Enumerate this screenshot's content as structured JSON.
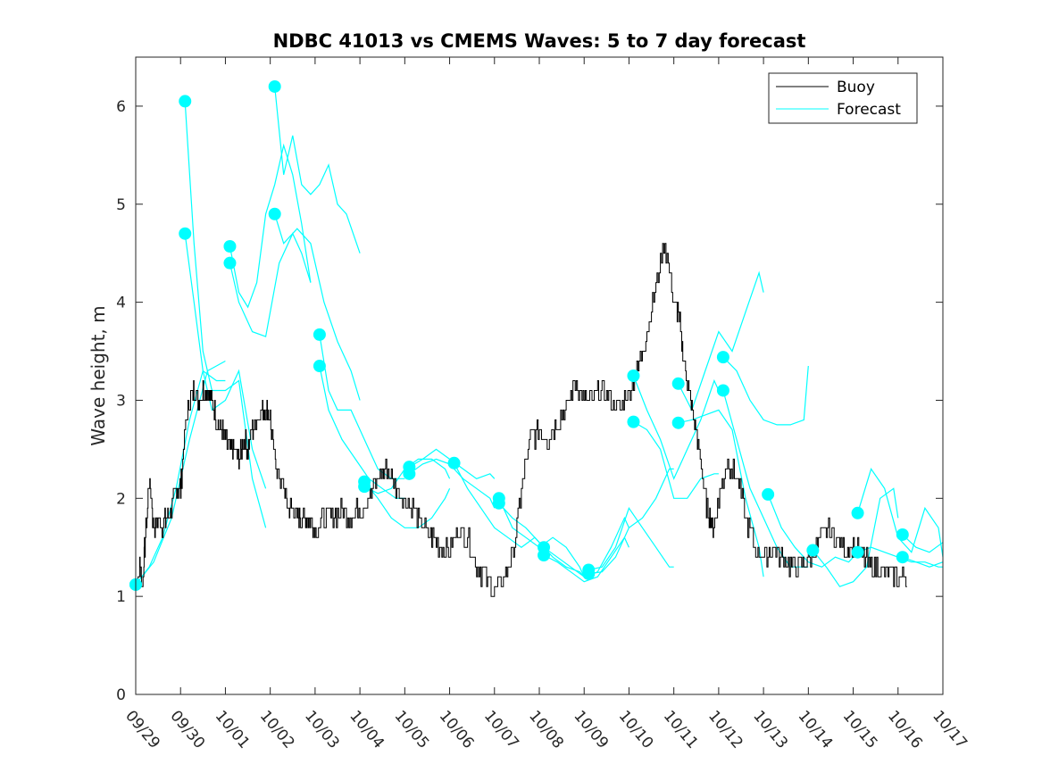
{
  "chart_data": {
    "type": "line",
    "title": "NDBC 41013 vs CMEMS Waves: 5 to 7 day forecast",
    "xlabel": "",
    "ylabel": "Wave height, m",
    "xlim": [
      0,
      18
    ],
    "ylim": [
      0,
      6.5
    ],
    "grid": false,
    "xticks": [
      0,
      1,
      2,
      3,
      4,
      5,
      6,
      7,
      8,
      9,
      10,
      11,
      12,
      13,
      14,
      15,
      16,
      17,
      18
    ],
    "xtick_labels": [
      "09/29",
      "09/30",
      "10/01",
      "10/02",
      "10/03",
      "10/04",
      "10/05",
      "10/06",
      "10/07",
      "10/08",
      "10/09",
      "10/10",
      "10/11",
      "10/12",
      "10/13",
      "10/14",
      "10/15",
      "10/16",
      "10/17"
    ],
    "yticks": [
      0,
      1,
      2,
      3,
      4,
      5,
      6
    ],
    "ytick_labels": [
      "0",
      "1",
      "2",
      "3",
      "4",
      "5",
      "6"
    ],
    "legend": {
      "location": "top-right",
      "entries": [
        {
          "label": "Buoy",
          "color": "#000000"
        },
        {
          "label": "Forecast",
          "color": "#00ffff"
        }
      ]
    },
    "colors": {
      "buoy": "#000000",
      "forecast": "#00ffff",
      "marker": "#00ffff"
    },
    "buoy": {
      "x": [
        0,
        0.1,
        0.15,
        0.2,
        0.3,
        0.4,
        0.5,
        0.6,
        0.7,
        0.8,
        0.9,
        1.0,
        1.1,
        1.2,
        1.3,
        1.4,
        1.5,
        1.6,
        1.7,
        1.8,
        1.9,
        2.0,
        2.1,
        2.2,
        2.3,
        2.4,
        2.5,
        2.6,
        2.7,
        2.8,
        2.9,
        3.0,
        3.1,
        3.2,
        3.3,
        3.4,
        3.5,
        3.6,
        3.7,
        3.8,
        3.9,
        4.0,
        4.2,
        4.4,
        4.6,
        4.8,
        5.0,
        5.2,
        5.4,
        5.6,
        5.8,
        6.0,
        6.2,
        6.4,
        6.6,
        6.8,
        7.0,
        7.2,
        7.4,
        7.6,
        7.8,
        8.0,
        8.2,
        8.4,
        8.6,
        8.8,
        9.0,
        9.2,
        9.4,
        9.6,
        9.8,
        10.0,
        10.2,
        10.4,
        10.6,
        10.8,
        11.0,
        11.2,
        11.4,
        11.6,
        11.8,
        12.0,
        12.1,
        12.2,
        12.3,
        12.4,
        12.5,
        12.6,
        12.7,
        12.8,
        12.9,
        13.0,
        13.2,
        13.4,
        13.6,
        13.8,
        14.0,
        14.2,
        14.4,
        14.6,
        14.8,
        15.0,
        15.2,
        15.4,
        15.6,
        15.8,
        16.0,
        16.2,
        16.4,
        16.6,
        16.8,
        17.0,
        17.2
      ],
      "y": [
        1.1,
        1.3,
        1.1,
        1.5,
        2.2,
        1.7,
        1.8,
        1.7,
        1.8,
        1.9,
        2.1,
        2.1,
        2.7,
        3.0,
        3.1,
        3.0,
        3.1,
        3.1,
        3.0,
        2.8,
        2.7,
        2.6,
        2.5,
        2.5,
        2.4,
        2.6,
        2.5,
        2.7,
        2.8,
        2.9,
        2.9,
        2.8,
        2.4,
        2.2,
        2.1,
        1.9,
        1.9,
        1.8,
        1.8,
        1.8,
        1.8,
        1.7,
        1.8,
        1.8,
        1.9,
        1.8,
        1.9,
        2.0,
        2.2,
        2.3,
        2.1,
        2.0,
        1.9,
        1.7,
        1.6,
        1.5,
        1.5,
        1.7,
        1.6,
        1.3,
        1.2,
        1.05,
        1.2,
        1.4,
        2.1,
        2.6,
        2.7,
        2.6,
        2.8,
        2.9,
        3.2,
        3.0,
        3.0,
        3.1,
        3.0,
        2.9,
        3.1,
        3.3,
        3.7,
        4.2,
        4.6,
        4.0,
        3.9,
        3.5,
        3.2,
        2.9,
        2.7,
        2.4,
        2.0,
        1.8,
        1.7,
        2.0,
        2.4,
        2.2,
        1.8,
        1.5,
        1.4,
        1.5,
        1.4,
        1.3,
        1.3,
        1.4,
        1.5,
        1.7,
        1.6,
        1.5,
        1.5,
        1.4,
        1.3,
        1.3,
        1.2,
        1.2,
        1.2
      ]
    },
    "forecasts": [
      {
        "x": [
          0,
          0.3,
          0.6,
          0.9,
          1.2,
          1.5,
          1.8,
          2.0
        ],
        "y": [
          1.12,
          1.3,
          1.6,
          2.1,
          2.8,
          3.3,
          3.2,
          3.2
        ]
      },
      {
        "x": [
          0,
          0.4,
          0.8,
          1.2,
          1.6,
          2.0
        ],
        "y": [
          1.12,
          1.35,
          1.8,
          2.6,
          3.3,
          3.4
        ]
      },
      {
        "x": [
          1.1,
          1.3,
          1.5,
          1.7,
          2.0,
          2.3,
          2.6,
          2.9
        ],
        "y": [
          6.05,
          4.6,
          3.5,
          3.1,
          3.1,
          3.2,
          2.2,
          1.7
        ]
      },
      {
        "x": [
          1.1,
          1.3,
          1.5,
          1.7,
          2.0,
          2.3,
          2.6,
          2.9
        ],
        "y": [
          4.7,
          4.0,
          3.3,
          2.9,
          3.0,
          3.3,
          2.5,
          2.1
        ]
      },
      {
        "x": [
          2.1,
          2.3,
          2.5,
          2.7,
          2.9,
          3.1,
          3.3,
          3.5,
          3.7,
          3.9
        ],
        "y": [
          4.57,
          4.1,
          3.95,
          4.2,
          4.9,
          5.2,
          5.6,
          5.3,
          4.8,
          4.2
        ]
      },
      {
        "x": [
          2.1,
          2.3,
          2.6,
          2.9,
          3.2,
          3.5,
          3.7,
          3.9
        ],
        "y": [
          4.4,
          4.0,
          3.7,
          3.65,
          4.4,
          4.7,
          4.5,
          4.2
        ]
      },
      {
        "x": [
          3.1,
          3.3,
          3.5,
          3.7,
          3.9,
          4.1,
          4.3,
          4.5,
          4.7,
          5.0
        ],
        "y": [
          6.2,
          5.3,
          5.7,
          5.2,
          5.1,
          5.2,
          5.4,
          5.0,
          4.9,
          4.5
        ]
      },
      {
        "x": [
          3.1,
          3.3,
          3.6,
          3.9,
          4.2,
          4.5,
          4.8,
          5.0
        ],
        "y": [
          4.9,
          4.6,
          4.75,
          4.6,
          4.0,
          3.6,
          3.3,
          3.0
        ]
      },
      {
        "x": [
          4.1,
          4.3,
          4.5,
          4.8,
          5.1,
          5.4,
          5.7,
          6.0
        ],
        "y": [
          3.67,
          3.1,
          2.9,
          2.9,
          2.6,
          2.3,
          2.2,
          2.2
        ]
      },
      {
        "x": [
          4.1,
          4.3,
          4.6,
          4.9,
          5.2,
          5.5,
          5.8,
          6.0
        ],
        "y": [
          3.35,
          2.9,
          2.6,
          2.4,
          2.2,
          2.1,
          2.0,
          2.0
        ]
      },
      {
        "x": [
          5.1,
          5.4,
          5.7,
          6.0,
          6.3,
          6.6,
          6.9,
          7.0
        ],
        "y": [
          2.17,
          2.0,
          1.8,
          1.7,
          1.7,
          1.8,
          2.0,
          2.1
        ]
      },
      {
        "x": [
          5.1,
          5.4,
          5.7,
          6.0,
          6.3,
          6.6,
          6.9,
          7.0
        ],
        "y": [
          2.12,
          2.05,
          2.1,
          2.3,
          2.4,
          2.4,
          2.3,
          2.2
        ]
      },
      {
        "x": [
          6.1,
          6.4,
          6.7,
          7.0,
          7.3,
          7.6,
          7.9,
          8.0
        ],
        "y": [
          2.32,
          2.4,
          2.5,
          2.4,
          2.3,
          2.2,
          2.25,
          2.2
        ]
      },
      {
        "x": [
          6.1,
          6.4,
          6.7,
          7.0,
          7.3,
          7.6,
          7.9,
          8.0
        ],
        "y": [
          2.25,
          2.35,
          2.4,
          2.35,
          2.2,
          2.1,
          2.0,
          1.9
        ]
      },
      {
        "x": [
          7.1,
          7.4,
          7.7,
          8.0,
          8.3,
          8.6,
          8.9,
          9.0
        ],
        "y": [
          2.36,
          2.1,
          1.9,
          1.7,
          1.6,
          1.5,
          1.6,
          1.55
        ]
      },
      {
        "x": [
          8.1,
          8.4,
          8.7,
          9.0,
          9.3,
          9.6,
          9.9,
          10.0
        ],
        "y": [
          2.0,
          1.7,
          1.6,
          1.5,
          1.6,
          1.5,
          1.3,
          1.2
        ]
      },
      {
        "x": [
          8.1,
          8.4,
          8.7,
          9.0,
          9.3,
          9.6,
          9.9,
          10.0
        ],
        "y": [
          1.95,
          1.8,
          1.7,
          1.55,
          1.4,
          1.3,
          1.25,
          1.2
        ]
      },
      {
        "x": [
          9.1,
          9.4,
          9.7,
          10.0,
          10.3,
          10.6,
          10.9,
          11.0
        ],
        "y": [
          1.5,
          1.4,
          1.3,
          1.2,
          1.25,
          1.5,
          1.8,
          1.7
        ]
      },
      {
        "x": [
          9.1,
          9.4,
          9.7,
          10.0,
          10.3,
          10.6,
          10.9,
          11.0
        ],
        "y": [
          1.42,
          1.35,
          1.25,
          1.15,
          1.2,
          1.4,
          1.6,
          1.5
        ]
      },
      {
        "x": [
          10.1,
          10.4,
          10.7,
          11.0,
          11.3,
          11.6,
          11.9,
          12.0
        ],
        "y": [
          1.27,
          1.3,
          1.5,
          1.9,
          1.7,
          1.5,
          1.3,
          1.3
        ]
      },
      {
        "x": [
          10.1,
          10.4,
          10.7,
          11.0,
          11.3,
          11.6,
          11.9,
          12.0
        ],
        "y": [
          1.23,
          1.25,
          1.4,
          1.7,
          1.8,
          2.0,
          2.3,
          2.3
        ]
      },
      {
        "x": [
          11.1,
          11.4,
          11.7,
          12.0,
          12.3,
          12.6,
          12.9,
          13.0
        ],
        "y": [
          3.25,
          2.9,
          2.6,
          2.2,
          2.5,
          2.8,
          3.2,
          3.1
        ]
      },
      {
        "x": [
          11.1,
          11.4,
          11.7,
          12.0,
          12.3,
          12.6,
          12.9,
          13.0
        ],
        "y": [
          2.78,
          2.7,
          2.5,
          2.0,
          2.0,
          2.2,
          2.25,
          2.25
        ]
      },
      {
        "x": [
          12.1,
          12.4,
          12.7,
          13.0,
          13.3,
          13.6,
          13.9,
          14.0
        ],
        "y": [
          3.17,
          2.9,
          3.3,
          3.7,
          3.5,
          3.9,
          4.3,
          4.1
        ]
      },
      {
        "x": [
          12.1,
          12.4,
          12.7,
          13.0,
          13.3,
          13.6,
          13.9,
          14.0
        ],
        "y": [
          2.77,
          2.8,
          2.85,
          2.9,
          2.7,
          2.0,
          1.5,
          1.2
        ]
      },
      {
        "x": [
          13.1,
          13.4,
          13.7,
          14.0,
          14.3,
          14.6,
          14.9,
          15.0
        ],
        "y": [
          3.44,
          3.3,
          3.0,
          2.8,
          2.75,
          2.75,
          2.8,
          3.35
        ]
      },
      {
        "x": [
          13.1,
          13.4,
          13.7,
          14.0,
          14.3,
          14.6,
          14.9,
          15.0
        ],
        "y": [
          3.1,
          2.6,
          2.1,
          1.8,
          1.5,
          1.3,
          1.3,
          1.3
        ]
      },
      {
        "x": [
          14.1,
          14.4,
          14.7,
          15.0,
          15.3,
          15.6,
          15.9,
          16.0
        ],
        "y": [
          2.04,
          1.7,
          1.5,
          1.35,
          1.3,
          1.4,
          1.35,
          1.4
        ]
      },
      {
        "x": [
          15.1,
          15.4,
          15.7,
          16.0,
          16.3,
          16.6,
          16.9,
          17.0
        ],
        "y": [
          1.47,
          1.3,
          1.1,
          1.15,
          1.3,
          2.0,
          2.1,
          1.8
        ]
      },
      {
        "x": [
          16.1,
          16.4,
          16.7,
          17.0,
          17.3,
          17.6,
          17.9,
          18.0
        ],
        "y": [
          1.85,
          2.3,
          2.1,
          1.6,
          1.45,
          1.9,
          1.7,
          1.4
        ]
      },
      {
        "x": [
          16.1,
          16.4,
          16.7,
          17.0,
          17.3,
          17.6,
          17.9,
          18.0
        ],
        "y": [
          1.45,
          1.5,
          1.45,
          1.4,
          1.35,
          1.35,
          1.3,
          1.3
        ]
      },
      {
        "x": [
          17.1,
          17.4,
          17.7,
          18.0
        ],
        "y": [
          1.63,
          1.5,
          1.45,
          1.55
        ]
      },
      {
        "x": [
          17.1,
          17.4,
          17.7,
          18.0
        ],
        "y": [
          1.4,
          1.35,
          1.3,
          1.35
        ]
      }
    ]
  }
}
